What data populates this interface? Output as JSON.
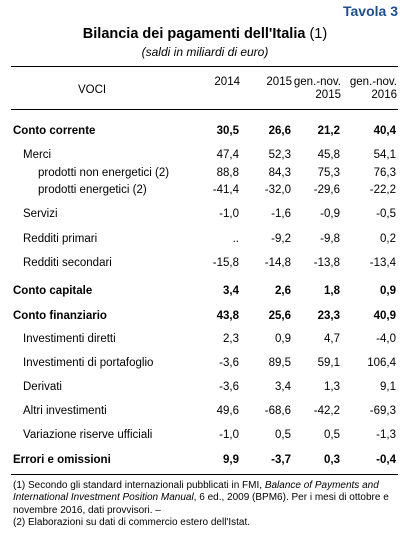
{
  "tag": "Tavola 3",
  "title": "Bilancia dei pagamenti dell'Italia",
  "title_note": "(1)",
  "subtitle": "(saldi in miliardi di euro)",
  "columns": {
    "voci": "VOCI",
    "c2014": "2014",
    "c2015": "2015",
    "c_gen2015_l1": "gen.-nov.",
    "c_gen2015_l2": "2015",
    "c_gen2016_l1": "gen.-nov.",
    "c_gen2016_l2": "2016"
  },
  "rows": [
    {
      "label": "Conto corrente",
      "v": [
        "30,5",
        "26,6",
        "21,2",
        "40,4"
      ]
    },
    {
      "label": "Merci",
      "v": [
        "47,4",
        "52,3",
        "45,8",
        "54,1"
      ]
    },
    {
      "label": "prodotti non energetici (2)",
      "v": [
        "88,8",
        "84,3",
        "75,3",
        "76,3"
      ]
    },
    {
      "label": "prodotti energetici (2)",
      "v": [
        "-41,4",
        "-32,0",
        "-29,6",
        "-22,2"
      ]
    },
    {
      "label": "Servizi",
      "v": [
        "-1,0",
        "-1,6",
        "-0,9",
        "-0,5"
      ]
    },
    {
      "label": "Redditi primari",
      "v": [
        "..",
        "-9,2",
        "-9,8",
        "0,2"
      ]
    },
    {
      "label": "Redditi secondari",
      "v": [
        "-15,8",
        "-14,8",
        "-13,8",
        "-13,4"
      ]
    },
    {
      "label": "Conto capitale",
      "v": [
        "3,4",
        "2,6",
        "1,8",
        "0,9"
      ]
    },
    {
      "label": "Conto finanziario",
      "v": [
        "43,8",
        "25,6",
        "23,3",
        "40,9"
      ]
    },
    {
      "label": "Investimenti diretti",
      "v": [
        "2,3",
        "0,9",
        "4,7",
        "-4,0"
      ]
    },
    {
      "label": "Investimenti di portafoglio",
      "v": [
        "-3,6",
        "89,5",
        "59,1",
        "106,4"
      ]
    },
    {
      "label": "Derivati",
      "v": [
        "-3,6",
        "3,4",
        "1,3",
        "9,1"
      ]
    },
    {
      "label": "Altri investimenti",
      "v": [
        "49,6",
        "-68,6",
        "-42,2",
        "-69,3"
      ]
    },
    {
      "label": "Variazione riserve ufficiali",
      "v": [
        "-1,0",
        "0,5",
        "0,5",
        "-1,3"
      ]
    },
    {
      "label": "Errori e omissioni",
      "v": [
        "9,9",
        "-3,7",
        "0,3",
        "-0,4"
      ]
    }
  ],
  "footnotes": {
    "n1_a": "(1) Secondo gli standard internazionali pubblicati in FMI, ",
    "n1_italic": "Balance of Payments and International Investment Position Manual",
    "n1_b": ", 6 ed., 2009 (BPM6). Per i mesi di ottobre e novembre 2016, dati provvisori. –",
    "n2": "(2) Elaborazioni su dati di commercio estero dell'Istat."
  }
}
